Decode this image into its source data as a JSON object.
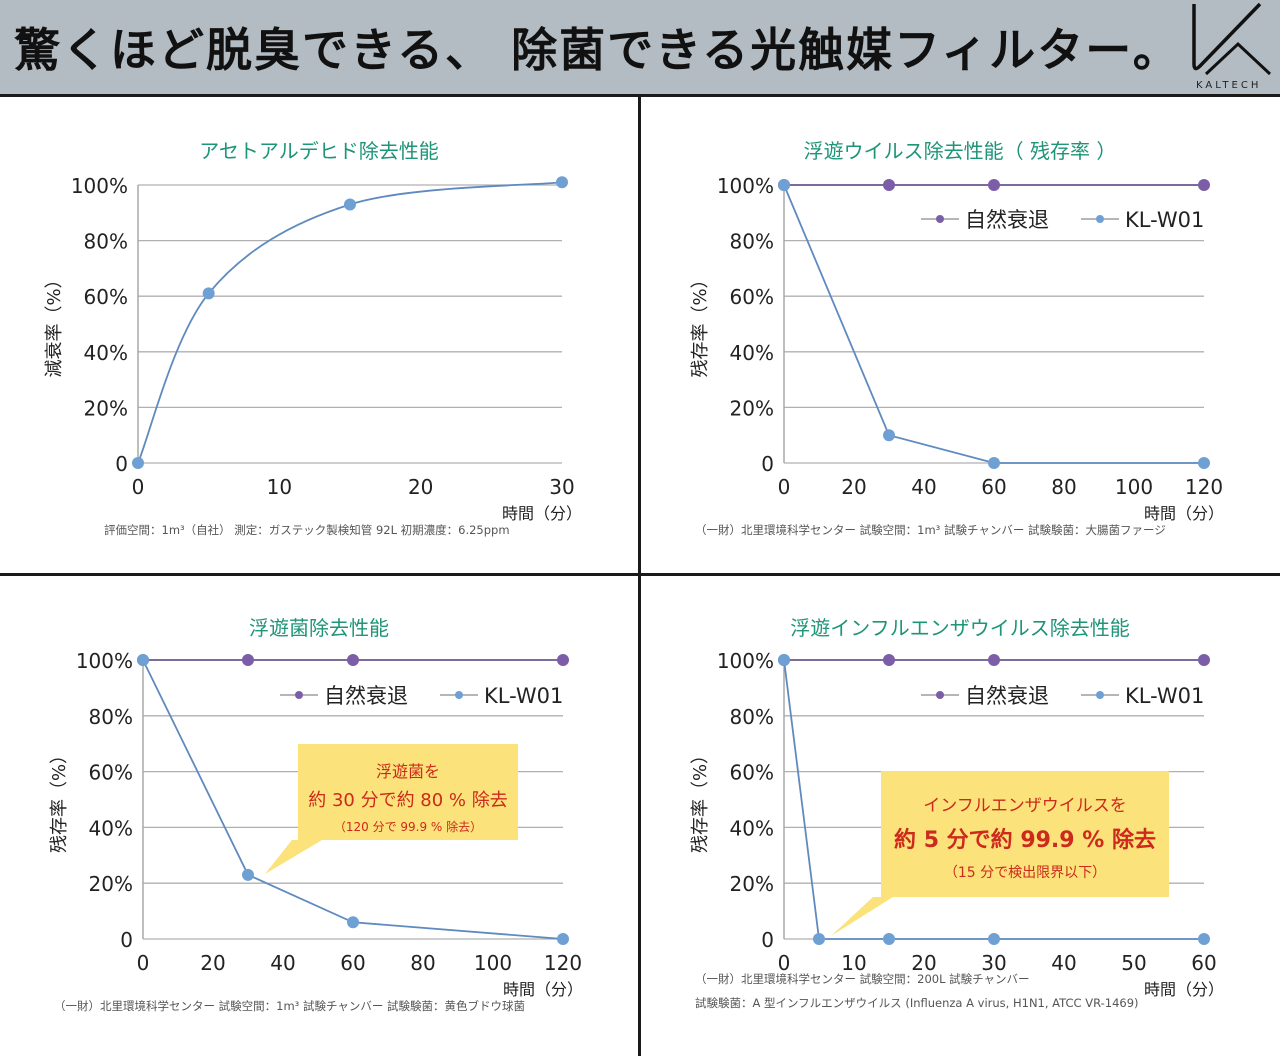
{
  "header": {
    "headline": "驚くほど脱臭できる、 除菌できる光触媒フィルター。",
    "brand": "KALTECH",
    "background": "#b3bcc3"
  },
  "colors": {
    "title": "#1e9478",
    "kl_series": "#6fa0d4",
    "natural_series": "#7b5ea7",
    "callout_bg": "#fbe27a",
    "callout_text": "#cc2a1c"
  },
  "chart_data": [
    {
      "type": "line",
      "title": "アセトアルデヒド除去性能",
      "ylabel": "減衰率（%）",
      "xlabel": "時間（分）",
      "xlim": [
        0,
        30
      ],
      "ylim": [
        0,
        100
      ],
      "xticks": [
        "0",
        "10",
        "20",
        "30"
      ],
      "yticks": [
        "0",
        "20%",
        "40%",
        "60%",
        "80%",
        "100%"
      ],
      "grid": true,
      "smooth": true,
      "series": [
        {
          "name": "KL-W01",
          "x": [
            0,
            5,
            15,
            30
          ],
          "values": [
            0,
            61,
            93,
            101
          ]
        }
      ],
      "legend": null,
      "note": "評価空間：1m³（自社） 測定：ガステック製検知管 92L 初期濃度：6.25ppm"
    },
    {
      "type": "line",
      "title": "浮遊ウイルス除去性能（ 残存率 ）",
      "ylabel": "残存率（%）",
      "xlabel": "時間（分）",
      "xlim": [
        0,
        120
      ],
      "ylim": [
        0,
        100
      ],
      "xticks": [
        "0",
        "20",
        "40",
        "60",
        "80",
        "100",
        "120"
      ],
      "yticks": [
        "0",
        "20%",
        "40%",
        "60%",
        "80%",
        "100%"
      ],
      "grid": true,
      "series": [
        {
          "name": "自然衰退",
          "x": [
            0,
            30,
            60,
            120
          ],
          "values": [
            100,
            100,
            100,
            100
          ]
        },
        {
          "name": "KL-W01",
          "x": [
            0,
            30,
            60,
            120
          ],
          "values": [
            100,
            10,
            0,
            0
          ]
        }
      ],
      "legend": "top-right",
      "note": "（一財）北里環境科学センター 試験空間：1m³ 試験チャンバー 試験験菌：大腸菌ファージ"
    },
    {
      "type": "line",
      "title": "浮遊菌除去性能",
      "ylabel": "残存率（%）",
      "xlabel": "時間（分）",
      "xlim": [
        0,
        120
      ],
      "ylim": [
        0,
        100
      ],
      "xticks": [
        "0",
        "20",
        "40",
        "60",
        "80",
        "100",
        "120"
      ],
      "yticks": [
        "0",
        "20%",
        "40%",
        "60%",
        "80%",
        "100%"
      ],
      "grid": true,
      "series": [
        {
          "name": "自然衰退",
          "x": [
            0,
            30,
            60,
            120
          ],
          "values": [
            100,
            100,
            100,
            100
          ]
        },
        {
          "name": "KL-W01",
          "x": [
            0,
            30,
            60,
            120
          ],
          "values": [
            100,
            23,
            6,
            0
          ]
        }
      ],
      "legend": "top-right",
      "callout": {
        "line1": "浮遊菌を",
        "line2": "約 30 分で約 80 % 除去",
        "line3": "（120 分で 99.9 % 除去）"
      },
      "note": "（一財）北里環境科学センター 試験空間：1m³ 試験チャンバー 試験験菌：黄色ブドウ球菌"
    },
    {
      "type": "line",
      "title": "浮遊インフルエンザウイルス除去性能",
      "ylabel": "残存率（%）",
      "xlabel": "時間（分）",
      "xlim": [
        0,
        60
      ],
      "ylim": [
        0,
        100
      ],
      "xticks": [
        "0",
        "10",
        "20",
        "30",
        "40",
        "50",
        "60"
      ],
      "yticks": [
        "0",
        "20%",
        "40%",
        "60%",
        "80%",
        "100%"
      ],
      "grid": true,
      "series": [
        {
          "name": "自然衰退",
          "x": [
            0,
            15,
            30,
            60
          ],
          "values": [
            100,
            100,
            100,
            100
          ]
        },
        {
          "name": "KL-W01",
          "x": [
            0,
            5,
            15,
            30,
            60
          ],
          "values": [
            100,
            0,
            0,
            0,
            0
          ]
        }
      ],
      "legend": "top-right",
      "callout": {
        "line1": "インフルエンザウイルスを",
        "line2": "約 5 分で約 99.9 % 除去",
        "line3": "（15 分で検出限界以下）"
      },
      "note": "（一財）北里環境科学センター 試験空間：200L 試験チャンバー",
      "note2": "試験験菌：A 型インフルエンザウイルス (Influenza A virus, H1N1, ATCC VR-1469)"
    }
  ]
}
